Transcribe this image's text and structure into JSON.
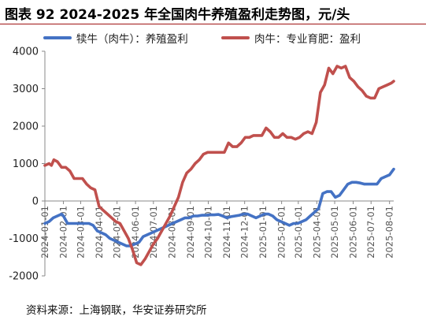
{
  "chart_data": {
    "title": "图表 92 2024-2025 年全国肉牛养殖盈利走势图，元/头",
    "type": "line",
    "ylim": [
      -2000,
      4000
    ],
    "yticks": [
      -2000,
      -1000,
      0,
      1000,
      2000,
      3000,
      4000
    ],
    "x_range": [
      "2024-01-01",
      "2025-08-08"
    ],
    "xticks": [
      "2024-01-01",
      "2024-02-01",
      "2024-03-01",
      "2024-04-01",
      "2024-05-01",
      "2024-06-01",
      "2024-07-01",
      "2024-08-01",
      "2024-09-01",
      "2024-10-01",
      "2024-11-01",
      "2024-12-01",
      "2025-01-01",
      "2025-02-01",
      "2025-03-01",
      "2025-04-01",
      "2025-05-01",
      "2025-06-01",
      "2025-07-01",
      "2025-08-01"
    ],
    "grid": false,
    "legend_position": "top",
    "series": [
      {
        "name": "犊牛（肉牛）：养殖盈利",
        "color": "#4472C4",
        "points": [
          [
            "2024-01-01",
            -600
          ],
          [
            "2024-01-08",
            -550
          ],
          [
            "2024-01-15",
            -450
          ],
          [
            "2024-01-22",
            -400
          ],
          [
            "2024-01-29",
            -350
          ],
          [
            "2024-02-01",
            -400
          ],
          [
            "2024-02-08",
            -600
          ],
          [
            "2024-02-15",
            -600
          ],
          [
            "2024-02-22",
            -600
          ],
          [
            "2024-03-01",
            -600
          ],
          [
            "2024-03-08",
            -600
          ],
          [
            "2024-03-15",
            -600
          ],
          [
            "2024-03-22",
            -650
          ],
          [
            "2024-03-29",
            -800
          ],
          [
            "2024-04-05",
            -850
          ],
          [
            "2024-04-12",
            -900
          ],
          [
            "2024-04-19",
            -1000
          ],
          [
            "2024-04-26",
            -1050
          ],
          [
            "2024-05-03",
            -1100
          ],
          [
            "2024-05-10",
            -1150
          ],
          [
            "2024-05-17",
            -1200
          ],
          [
            "2024-05-24",
            -1200
          ],
          [
            "2024-05-31",
            -1150
          ],
          [
            "2024-06-07",
            -1100
          ],
          [
            "2024-06-14",
            -950
          ],
          [
            "2024-06-21",
            -900
          ],
          [
            "2024-06-28",
            -850
          ],
          [
            "2024-07-05",
            -800
          ],
          [
            "2024-07-12",
            -750
          ],
          [
            "2024-07-19",
            -700
          ],
          [
            "2024-07-26",
            -650
          ],
          [
            "2024-08-02",
            -600
          ],
          [
            "2024-08-09",
            -550
          ],
          [
            "2024-08-16",
            -500
          ],
          [
            "2024-08-23",
            -450
          ],
          [
            "2024-08-30",
            -450
          ],
          [
            "2024-09-06",
            -400
          ],
          [
            "2024-09-13",
            -400
          ],
          [
            "2024-09-20",
            -380
          ],
          [
            "2024-09-27",
            -380
          ],
          [
            "2024-10-04",
            -370
          ],
          [
            "2024-10-11",
            -370
          ],
          [
            "2024-10-18",
            -360
          ],
          [
            "2024-10-25",
            -400
          ],
          [
            "2024-11-01",
            -450
          ],
          [
            "2024-11-08",
            -420
          ],
          [
            "2024-11-15",
            -400
          ],
          [
            "2024-11-22",
            -380
          ],
          [
            "2024-11-29",
            -350
          ],
          [
            "2024-12-06",
            -350
          ],
          [
            "2024-12-13",
            -400
          ],
          [
            "2024-12-20",
            -450
          ],
          [
            "2024-12-27",
            -400
          ],
          [
            "2025-01-03",
            -350
          ],
          [
            "2025-01-10",
            -350
          ],
          [
            "2025-01-17",
            -400
          ],
          [
            "2025-01-24",
            -500
          ],
          [
            "2025-01-31",
            -550
          ],
          [
            "2025-02-07",
            -600
          ],
          [
            "2025-02-14",
            -650
          ],
          [
            "2025-02-21",
            -600
          ],
          [
            "2025-02-28",
            -600
          ],
          [
            "2025-03-07",
            -550
          ],
          [
            "2025-03-14",
            -500
          ],
          [
            "2025-03-21",
            -400
          ],
          [
            "2025-03-28",
            -300
          ],
          [
            "2025-04-04",
            -200
          ],
          [
            "2025-04-11",
            200
          ],
          [
            "2025-04-18",
            250
          ],
          [
            "2025-04-25",
            250
          ],
          [
            "2025-05-02",
            100
          ],
          [
            "2025-05-09",
            150
          ],
          [
            "2025-05-16",
            300
          ],
          [
            "2025-05-23",
            450
          ],
          [
            "2025-05-30",
            500
          ],
          [
            "2025-06-06",
            500
          ],
          [
            "2025-06-13",
            480
          ],
          [
            "2025-06-20",
            450
          ],
          [
            "2025-06-27",
            450
          ],
          [
            "2025-07-04",
            450
          ],
          [
            "2025-07-11",
            450
          ],
          [
            "2025-07-18",
            600
          ],
          [
            "2025-07-25",
            650
          ],
          [
            "2025-08-01",
            700
          ],
          [
            "2025-08-08",
            850
          ]
        ]
      },
      {
        "name": "肉牛：专业育肥：盈利",
        "color": "#C0504D",
        "points": [
          [
            "2024-01-01",
            950
          ],
          [
            "2024-01-08",
            1000
          ],
          [
            "2024-01-12",
            950
          ],
          [
            "2024-01-16",
            1100
          ],
          [
            "2024-01-22",
            1050
          ],
          [
            "2024-01-29",
            900
          ],
          [
            "2024-02-05",
            900
          ],
          [
            "2024-02-12",
            800
          ],
          [
            "2024-02-19",
            600
          ],
          [
            "2024-02-26",
            600
          ],
          [
            "2024-03-04",
            600
          ],
          [
            "2024-03-11",
            450
          ],
          [
            "2024-03-18",
            350
          ],
          [
            "2024-03-25",
            300
          ],
          [
            "2024-04-01",
            -150
          ],
          [
            "2024-04-08",
            -250
          ],
          [
            "2024-04-15",
            -350
          ],
          [
            "2024-04-22",
            -450
          ],
          [
            "2024-04-29",
            -550
          ],
          [
            "2024-05-06",
            -600
          ],
          [
            "2024-05-13",
            -800
          ],
          [
            "2024-05-20",
            -1000
          ],
          [
            "2024-05-27",
            -1300
          ],
          [
            "2024-06-03",
            -1650
          ],
          [
            "2024-06-10",
            -1700
          ],
          [
            "2024-06-17",
            -1550
          ],
          [
            "2024-06-24",
            -1350
          ],
          [
            "2024-07-01",
            -1150
          ],
          [
            "2024-07-08",
            -1000
          ],
          [
            "2024-07-15",
            -800
          ],
          [
            "2024-07-22",
            -600
          ],
          [
            "2024-07-29",
            -400
          ],
          [
            "2024-08-05",
            -150
          ],
          [
            "2024-08-12",
            100
          ],
          [
            "2024-08-19",
            500
          ],
          [
            "2024-08-26",
            750
          ],
          [
            "2024-09-02",
            850
          ],
          [
            "2024-09-09",
            1000
          ],
          [
            "2024-09-16",
            1100
          ],
          [
            "2024-09-23",
            1250
          ],
          [
            "2024-09-30",
            1300
          ],
          [
            "2024-10-07",
            1300
          ],
          [
            "2024-10-14",
            1300
          ],
          [
            "2024-10-21",
            1300
          ],
          [
            "2024-10-28",
            1300
          ],
          [
            "2024-11-04",
            1550
          ],
          [
            "2024-11-11",
            1450
          ],
          [
            "2024-11-18",
            1450
          ],
          [
            "2024-11-25",
            1550
          ],
          [
            "2024-12-02",
            1700
          ],
          [
            "2024-12-09",
            1700
          ],
          [
            "2024-12-16",
            1750
          ],
          [
            "2024-12-23",
            1750
          ],
          [
            "2024-12-30",
            1750
          ],
          [
            "2025-01-06",
            1950
          ],
          [
            "2025-01-13",
            1850
          ],
          [
            "2025-01-20",
            1700
          ],
          [
            "2025-01-27",
            1700
          ],
          [
            "2025-02-03",
            1800
          ],
          [
            "2025-02-10",
            1700
          ],
          [
            "2025-02-17",
            1700
          ],
          [
            "2025-02-24",
            1650
          ],
          [
            "2025-03-03",
            1700
          ],
          [
            "2025-03-10",
            1800
          ],
          [
            "2025-03-17",
            1850
          ],
          [
            "2025-03-24",
            1800
          ],
          [
            "2025-03-31",
            2100
          ],
          [
            "2025-04-07",
            2900
          ],
          [
            "2025-04-14",
            3100
          ],
          [
            "2025-04-21",
            3550
          ],
          [
            "2025-04-28",
            3400
          ],
          [
            "2025-05-05",
            3600
          ],
          [
            "2025-05-12",
            3550
          ],
          [
            "2025-05-19",
            3600
          ],
          [
            "2025-05-26",
            3300
          ],
          [
            "2025-06-02",
            3200
          ],
          [
            "2025-06-09",
            3050
          ],
          [
            "2025-06-16",
            2950
          ],
          [
            "2025-06-23",
            2800
          ],
          [
            "2025-06-30",
            2750
          ],
          [
            "2025-07-07",
            2750
          ],
          [
            "2025-07-14",
            3000
          ],
          [
            "2025-07-21",
            3050
          ],
          [
            "2025-07-28",
            3100
          ],
          [
            "2025-08-04",
            3150
          ],
          [
            "2025-08-08",
            3200
          ]
        ]
      }
    ]
  },
  "source": "资料来源：上海钢联，华安证券研究所"
}
